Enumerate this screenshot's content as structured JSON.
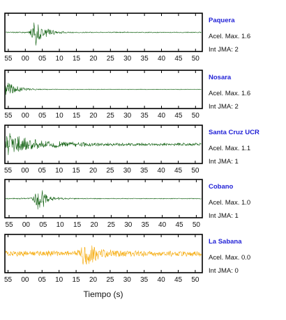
{
  "chart_data": {
    "type": "line",
    "xlabel": "Tiempo (s)",
    "x_tick_labels": [
      "55",
      "00",
      "05",
      "10",
      "15",
      "20",
      "25",
      "30",
      "35",
      "40",
      "45",
      "50"
    ],
    "panels": [
      {
        "station": "Paquera",
        "max_accel_label": "Acel. Max. 1.6",
        "jma_label": "Int JMA: 2",
        "color": "#0b5d0b",
        "tick_offset": 0.4,
        "arrival_offset": 3.0,
        "envelope_peak": 0.85,
        "pre_noise": 0.04,
        "tail_level": 0.03,
        "decay_rate": 0.32
      },
      {
        "station": "Nosara",
        "max_accel_label": "Acel. Max. 1.6",
        "jma_label": "Int JMA: 2",
        "color": "#0b5d0b",
        "tick_offset": 0.4,
        "arrival_offset": -7.2,
        "envelope_peak": 0.95,
        "pre_noise": 0.0,
        "tail_level": 0.02,
        "decay_rate": 0.28
      },
      {
        "station": "Santa Cruz UCR",
        "max_accel_label": "Acel. Max. 1.1",
        "jma_label": "Int JMA: 1",
        "color": "#0b5d0b",
        "tick_offset": 0.0,
        "arrival_offset": -8.5,
        "envelope_peak": 0.95,
        "pre_noise": 0.0,
        "tail_level": 0.09,
        "decay_rate": 0.09
      },
      {
        "station": "Cobano",
        "max_accel_label": "Acel. Max. 1.0",
        "jma_label": "Int JMA: 1",
        "color": "#0b5d0b",
        "tick_offset": 1.5,
        "arrival_offset": 3.5,
        "envelope_peak": 0.9,
        "pre_noise": 0.04,
        "tail_level": 0.025,
        "decay_rate": 0.35
      },
      {
        "station": "La Sabana",
        "max_accel_label": "Acel. Max. 0.0",
        "jma_label": "Int JMA: 0",
        "color": "#f5a700",
        "tick_offset": 0.0,
        "arrival_offset": 17.5,
        "envelope_peak": 0.95,
        "pre_noise": 0.18,
        "tail_level": 0.18,
        "decay_rate": 0.25
      }
    ]
  }
}
